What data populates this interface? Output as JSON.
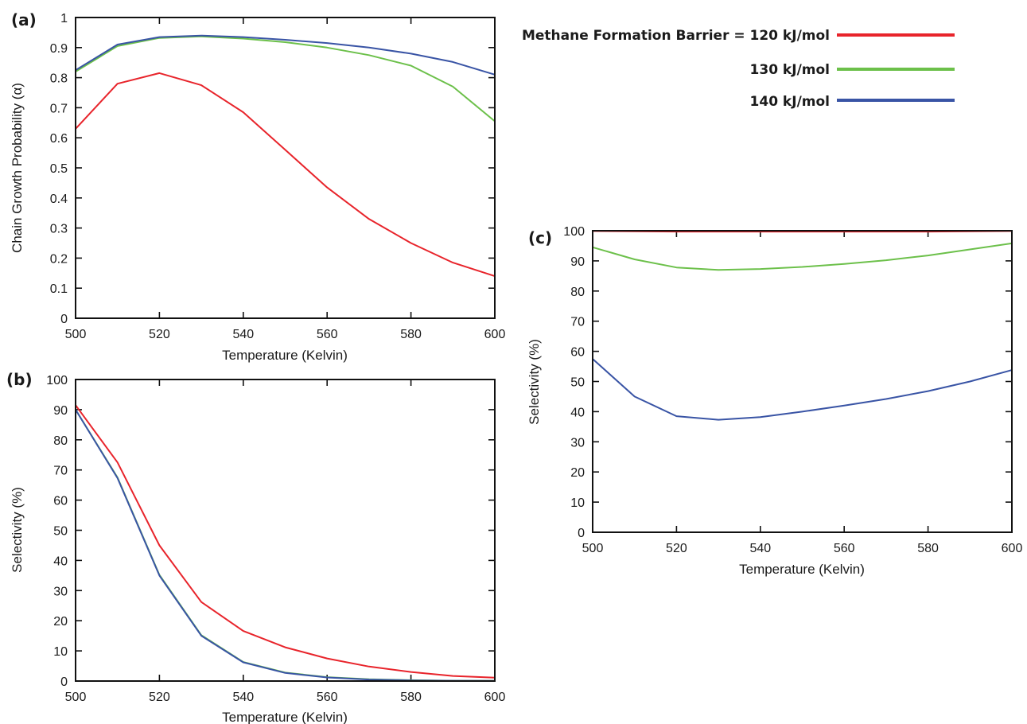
{
  "legend": {
    "items": [
      {
        "label": "Methane Formation Barrier = 120 kJ/mol",
        "color": "#e8242b"
      },
      {
        "label": "130 kJ/mol",
        "color": "#6cc04a"
      },
      {
        "label": "140 kJ/mol",
        "color": "#3954a5"
      }
    ]
  },
  "chart_data": [
    {
      "panel": "(a)",
      "type": "line",
      "xlabel": "Temperature (Kelvin)",
      "ylabel": "Chain Growth Probability (α)",
      "xlim": [
        500,
        600
      ],
      "ylim": [
        0,
        1
      ],
      "xticks": [
        500,
        520,
        540,
        560,
        580,
        600
      ],
      "yticks": [
        0,
        0.1,
        0.2,
        0.3,
        0.4,
        0.5,
        0.6,
        0.7,
        0.8,
        0.9,
        1
      ],
      "ytick_labels": [
        "0",
        "0.1",
        "0.2",
        "0.3",
        "0.4",
        "0.5",
        "0.6",
        "0.7",
        "0.8",
        "0.9",
        "1"
      ],
      "x": [
        500,
        510,
        520,
        530,
        540,
        550,
        560,
        570,
        580,
        590,
        600
      ],
      "series": [
        {
          "color": "#e8242b",
          "values": [
            0.63,
            0.78,
            0.815,
            0.775,
            0.685,
            0.56,
            0.435,
            0.33,
            0.25,
            0.185,
            0.14
          ]
        },
        {
          "color": "#6cc04a",
          "values": [
            0.82,
            0.905,
            0.932,
            0.937,
            0.93,
            0.918,
            0.9,
            0.875,
            0.84,
            0.77,
            0.655
          ]
        },
        {
          "color": "#3954a5",
          "values": [
            0.825,
            0.91,
            0.935,
            0.94,
            0.935,
            0.926,
            0.915,
            0.9,
            0.88,
            0.852,
            0.81
          ]
        }
      ]
    },
    {
      "panel": "(b)",
      "type": "line",
      "xlabel": "Temperature (Kelvin)",
      "ylabel": "Selectivity (%)",
      "xlim": [
        500,
        600
      ],
      "ylim": [
        0,
        100
      ],
      "xticks": [
        500,
        520,
        540,
        560,
        580,
        600
      ],
      "yticks": [
        0,
        10,
        20,
        30,
        40,
        50,
        60,
        70,
        80,
        90,
        100
      ],
      "ytick_labels": [
        "0",
        "10",
        "20",
        "30",
        "40",
        "50",
        "60",
        "70",
        "80",
        "90",
        "100"
      ],
      "x": [
        500,
        510,
        520,
        530,
        540,
        550,
        560,
        570,
        580,
        590,
        600
      ],
      "series": [
        {
          "color": "#e8242b",
          "values": [
            91.5,
            72.5,
            45,
            26.2,
            16.6,
            11.2,
            7.5,
            4.8,
            3,
            1.7,
            1.1
          ]
        },
        {
          "color": "#6cc04a",
          "values": [
            90,
            67.5,
            35.2,
            15.2,
            6.3,
            2.8,
            1.3,
            0.6,
            0.3,
            0.1,
            0.05
          ]
        },
        {
          "color": "#3954a5",
          "values": [
            90,
            67.3,
            35,
            15,
            6.2,
            2.7,
            1.2,
            0.5,
            0.2,
            0.1,
            0.05
          ]
        }
      ]
    },
    {
      "panel": "(c)",
      "type": "line",
      "xlabel": "Temperature (Kelvin)",
      "ylabel": "Selectivity (%)",
      "xlim": [
        500,
        600
      ],
      "ylim": [
        0,
        100
      ],
      "xticks": [
        500,
        520,
        540,
        560,
        580,
        600
      ],
      "yticks": [
        0,
        10,
        20,
        30,
        40,
        50,
        60,
        70,
        80,
        90,
        100
      ],
      "ytick_labels": [
        "0",
        "10",
        "20",
        "30",
        "40",
        "50",
        "60",
        "70",
        "80",
        "90",
        "100"
      ],
      "x": [
        500,
        510,
        520,
        530,
        540,
        550,
        560,
        570,
        580,
        590,
        600
      ],
      "series": [
        {
          "color": "#e8242b",
          "values": [
            99.9,
            99.8,
            99.7,
            99.7,
            99.7,
            99.7,
            99.7,
            99.7,
            99.7,
            99.8,
            99.9
          ]
        },
        {
          "color": "#6cc04a",
          "values": [
            94.5,
            90.5,
            87.8,
            87,
            87.3,
            88,
            89,
            90.2,
            91.8,
            93.8,
            95.8
          ]
        },
        {
          "color": "#3954a5",
          "values": [
            57.5,
            45,
            38.5,
            37.3,
            38.2,
            40,
            42,
            44.2,
            46.8,
            50,
            53.8
          ]
        }
      ]
    }
  ]
}
